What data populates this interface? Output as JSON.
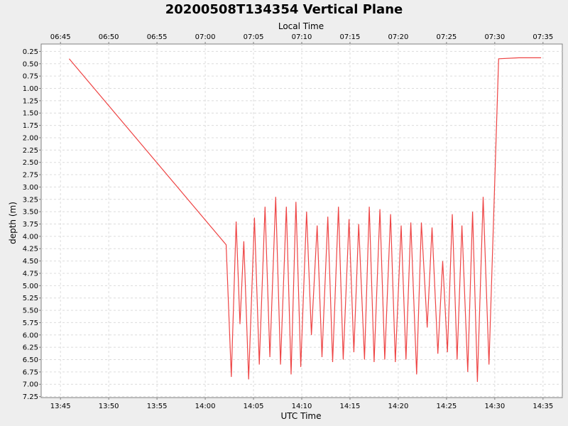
{
  "chart_data": {
    "type": "line",
    "title": "20200508T134354 Vertical Plane",
    "xlabel": "UTC Time",
    "x2label": "Local Time",
    "ylabel": "depth (m)",
    "y_inverted": true,
    "xlim": [
      "13:43",
      "14:37"
    ],
    "ylim": [
      0.1,
      7.27
    ],
    "x_ticks": [
      "13:45",
      "13:50",
      "13:55",
      "14:00",
      "14:05",
      "14:10",
      "14:15",
      "14:20",
      "14:25",
      "14:30",
      "14:35"
    ],
    "x2_ticks": [
      "06:45",
      "06:50",
      "06:55",
      "07:00",
      "07:05",
      "07:10",
      "07:15",
      "07:20",
      "07:25",
      "07:30",
      "07:35"
    ],
    "y_ticks": [
      "0.25",
      "0.50",
      "0.75",
      "1.00",
      "1.25",
      "1.50",
      "1.75",
      "2.00",
      "2.25",
      "2.50",
      "2.75",
      "3.00",
      "3.25",
      "3.50",
      "3.75",
      "4.00",
      "4.25",
      "4.50",
      "4.75",
      "5.00",
      "5.25",
      "5.50",
      "5.75",
      "6.00",
      "6.25",
      "6.50",
      "6.75",
      "7.00",
      "7.25"
    ],
    "grid": true,
    "series": [
      {
        "color": "#ee4444",
        "points": [
          [
            "13:45:54",
            0.4
          ],
          [
            "14:02:10",
            4.17
          ],
          [
            "14:02:42",
            6.85
          ],
          [
            "14:03:12",
            3.7
          ],
          [
            "14:03:36",
            5.78
          ],
          [
            "14:04:00",
            4.1
          ],
          [
            "14:04:30",
            6.9
          ],
          [
            "14:05:06",
            3.62
          ],
          [
            "14:05:36",
            6.6
          ],
          [
            "14:06:12",
            3.4
          ],
          [
            "14:06:42",
            6.45
          ],
          [
            "14:07:18",
            3.2
          ],
          [
            "14:07:48",
            6.6
          ],
          [
            "14:08:24",
            3.4
          ],
          [
            "14:08:54",
            6.8
          ],
          [
            "14:09:24",
            3.3
          ],
          [
            "14:09:54",
            6.65
          ],
          [
            "14:10:30",
            3.5
          ],
          [
            "14:11:00",
            6.0
          ],
          [
            "14:11:36",
            3.78
          ],
          [
            "14:12:06",
            6.45
          ],
          [
            "14:12:42",
            3.6
          ],
          [
            "14:13:12",
            6.55
          ],
          [
            "14:13:48",
            3.4
          ],
          [
            "14:14:18",
            6.5
          ],
          [
            "14:14:54",
            3.65
          ],
          [
            "14:15:24",
            6.35
          ],
          [
            "14:15:54",
            3.75
          ],
          [
            "14:16:30",
            6.5
          ],
          [
            "14:17:00",
            3.4
          ],
          [
            "14:17:30",
            6.55
          ],
          [
            "14:18:06",
            3.45
          ],
          [
            "14:18:36",
            6.5
          ],
          [
            "14:19:12",
            3.55
          ],
          [
            "14:19:42",
            6.55
          ],
          [
            "14:20:18",
            3.78
          ],
          [
            "14:20:48",
            6.5
          ],
          [
            "14:21:18",
            3.72
          ],
          [
            "14:21:54",
            6.8
          ],
          [
            "14:22:24",
            3.72
          ],
          [
            "14:23:00",
            5.85
          ],
          [
            "14:23:30",
            3.82
          ],
          [
            "14:24:06",
            6.38
          ],
          [
            "14:24:36",
            4.5
          ],
          [
            "14:25:06",
            6.35
          ],
          [
            "14:25:36",
            3.55
          ],
          [
            "14:26:06",
            6.5
          ],
          [
            "14:26:36",
            3.78
          ],
          [
            "14:27:12",
            6.75
          ],
          [
            "14:27:42",
            3.5
          ],
          [
            "14:28:12",
            6.95
          ],
          [
            "14:28:48",
            3.2
          ],
          [
            "14:29:24",
            6.6
          ],
          [
            "14:30:24",
            0.4
          ],
          [
            "14:32:30",
            0.38
          ],
          [
            "14:34:48",
            0.38
          ]
        ]
      }
    ]
  }
}
